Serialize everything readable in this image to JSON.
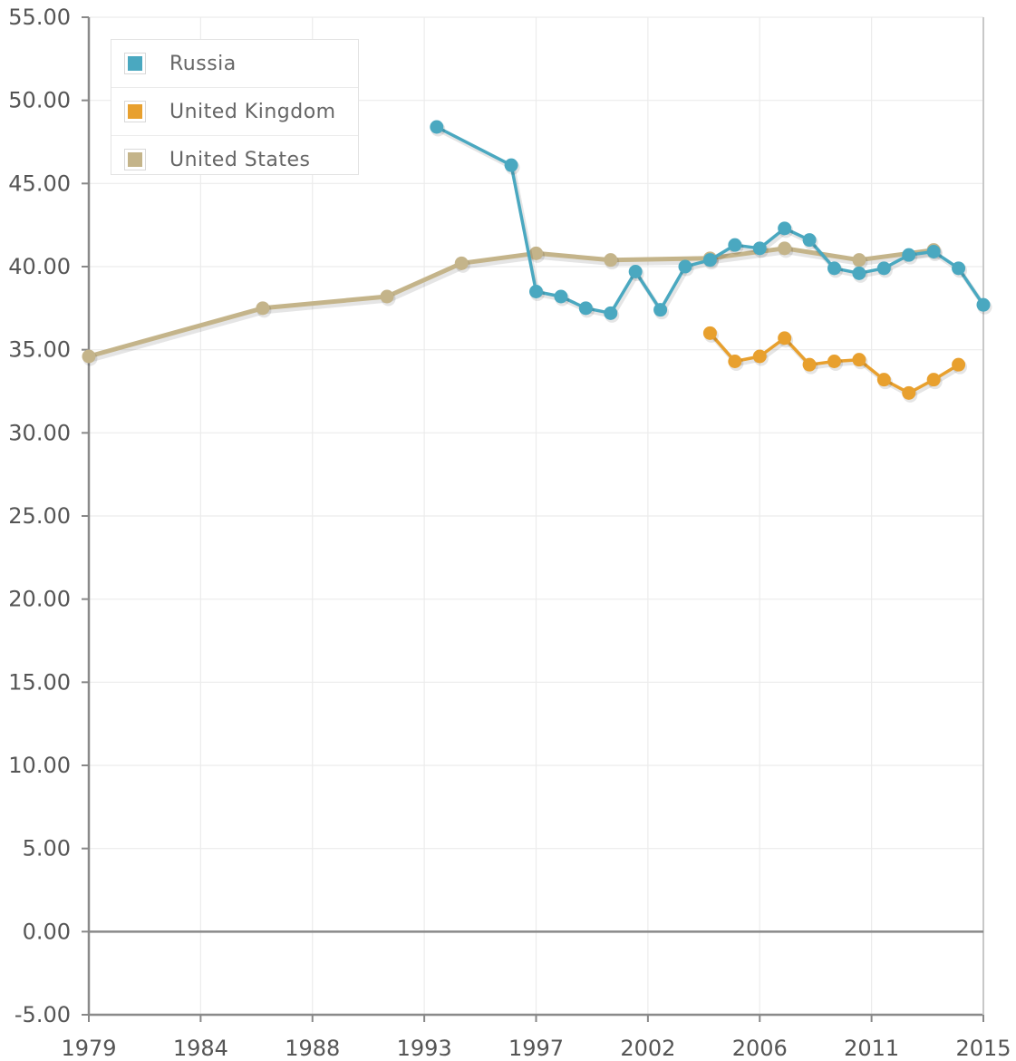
{
  "chart_data": {
    "type": "line",
    "title": "",
    "xlabel": "",
    "ylabel": "",
    "xlim": [
      1979,
      2015
    ],
    "ylim": [
      -5,
      55
    ],
    "x_tick_labels": [
      "1979",
      "1984",
      "1988",
      "1993",
      "1997",
      "2002",
      "2006",
      "2011",
      "2015"
    ],
    "y_tick_labels": [
      "55.00",
      "50.00",
      "45.00",
      "40.00",
      "35.00",
      "30.00",
      "25.00",
      "20.00",
      "15.00",
      "10.00",
      "5.00",
      "0.00",
      "-5.00"
    ],
    "y_ticks": [
      55,
      50,
      45,
      40,
      35,
      30,
      25,
      20,
      15,
      10,
      5,
      0,
      -5
    ],
    "grid": true,
    "legend_position": "top-left",
    "series": [
      {
        "name": "Russia",
        "color": "#4aa8c0",
        "points": [
          [
            1993.0,
            48.4
          ],
          [
            1996.0,
            46.1
          ],
          [
            1997.0,
            38.5
          ],
          [
            1998.0,
            38.2
          ],
          [
            1999.0,
            37.5
          ],
          [
            2000.0,
            37.2
          ],
          [
            2001.0,
            39.7
          ],
          [
            2002.0,
            37.4
          ],
          [
            2003.0,
            40.0
          ],
          [
            2004.0,
            40.4
          ],
          [
            2005.0,
            41.3
          ],
          [
            2006.0,
            41.1
          ],
          [
            2007.0,
            42.3
          ],
          [
            2008.0,
            41.6
          ],
          [
            2009.0,
            39.9
          ],
          [
            2010.0,
            39.6
          ],
          [
            2011.0,
            39.9
          ],
          [
            2012.0,
            40.7
          ],
          [
            2013.0,
            40.9
          ],
          [
            2014.0,
            39.9
          ],
          [
            2015.0,
            37.7
          ]
        ]
      },
      {
        "name": "United Kingdom",
        "color": "#e8a02e",
        "points": [
          [
            2004.0,
            36.0
          ],
          [
            2005.0,
            34.3
          ],
          [
            2006.0,
            34.6
          ],
          [
            2007.0,
            35.7
          ],
          [
            2008.0,
            34.1
          ],
          [
            2009.0,
            34.3
          ],
          [
            2010.0,
            34.4
          ],
          [
            2011.0,
            33.2
          ],
          [
            2012.0,
            32.4
          ],
          [
            2013.0,
            33.2
          ],
          [
            2014.0,
            34.1
          ]
        ]
      },
      {
        "name": "United States",
        "color": "#c4b48a",
        "points": [
          [
            1979.0,
            34.6
          ],
          [
            1986.0,
            37.5
          ],
          [
            1991.0,
            38.2
          ],
          [
            1994.0,
            40.2
          ],
          [
            1997.0,
            40.8
          ],
          [
            2000.0,
            40.4
          ],
          [
            2004.0,
            40.5
          ],
          [
            2007.0,
            41.1
          ],
          [
            2010.0,
            40.4
          ],
          [
            2013.0,
            41.0
          ]
        ]
      }
    ]
  }
}
